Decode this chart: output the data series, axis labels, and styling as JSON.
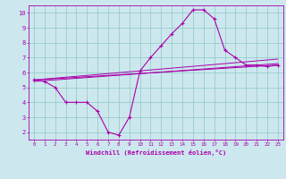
{
  "xlabel": "Windchill (Refroidissement éolien,°C)",
  "background_color": "#cce8ee",
  "grid_color": "#99cccc",
  "line_color": "#aa00aa",
  "xlim": [
    -0.5,
    23.5
  ],
  "ylim": [
    1.5,
    10.5
  ],
  "xticks": [
    0,
    1,
    2,
    3,
    4,
    5,
    6,
    7,
    8,
    9,
    10,
    11,
    12,
    13,
    14,
    15,
    16,
    17,
    18,
    19,
    20,
    21,
    22,
    23
  ],
  "yticks": [
    2,
    3,
    4,
    5,
    6,
    7,
    8,
    9,
    10
  ],
  "hours": [
    0,
    1,
    2,
    3,
    4,
    5,
    6,
    7,
    8,
    9,
    10,
    11,
    12,
    13,
    14,
    15,
    16,
    17,
    18,
    19,
    20,
    21,
    22,
    23
  ],
  "windchill": [
    5.5,
    5.4,
    5.0,
    4.0,
    4.0,
    4.0,
    3.4,
    2.0,
    1.8,
    3.0,
    6.1,
    7.0,
    7.8,
    8.6,
    9.3,
    10.2,
    10.2,
    9.6,
    7.5,
    7.0,
    6.5,
    6.5,
    6.4,
    6.5
  ],
  "trend1_x": [
    0,
    23
  ],
  "trend1_y": [
    5.5,
    6.9
  ],
  "trend2_x": [
    0,
    23
  ],
  "trend2_y": [
    5.5,
    6.5
  ],
  "trend3_x": [
    0,
    23
  ],
  "trend3_y": [
    5.4,
    6.6
  ]
}
